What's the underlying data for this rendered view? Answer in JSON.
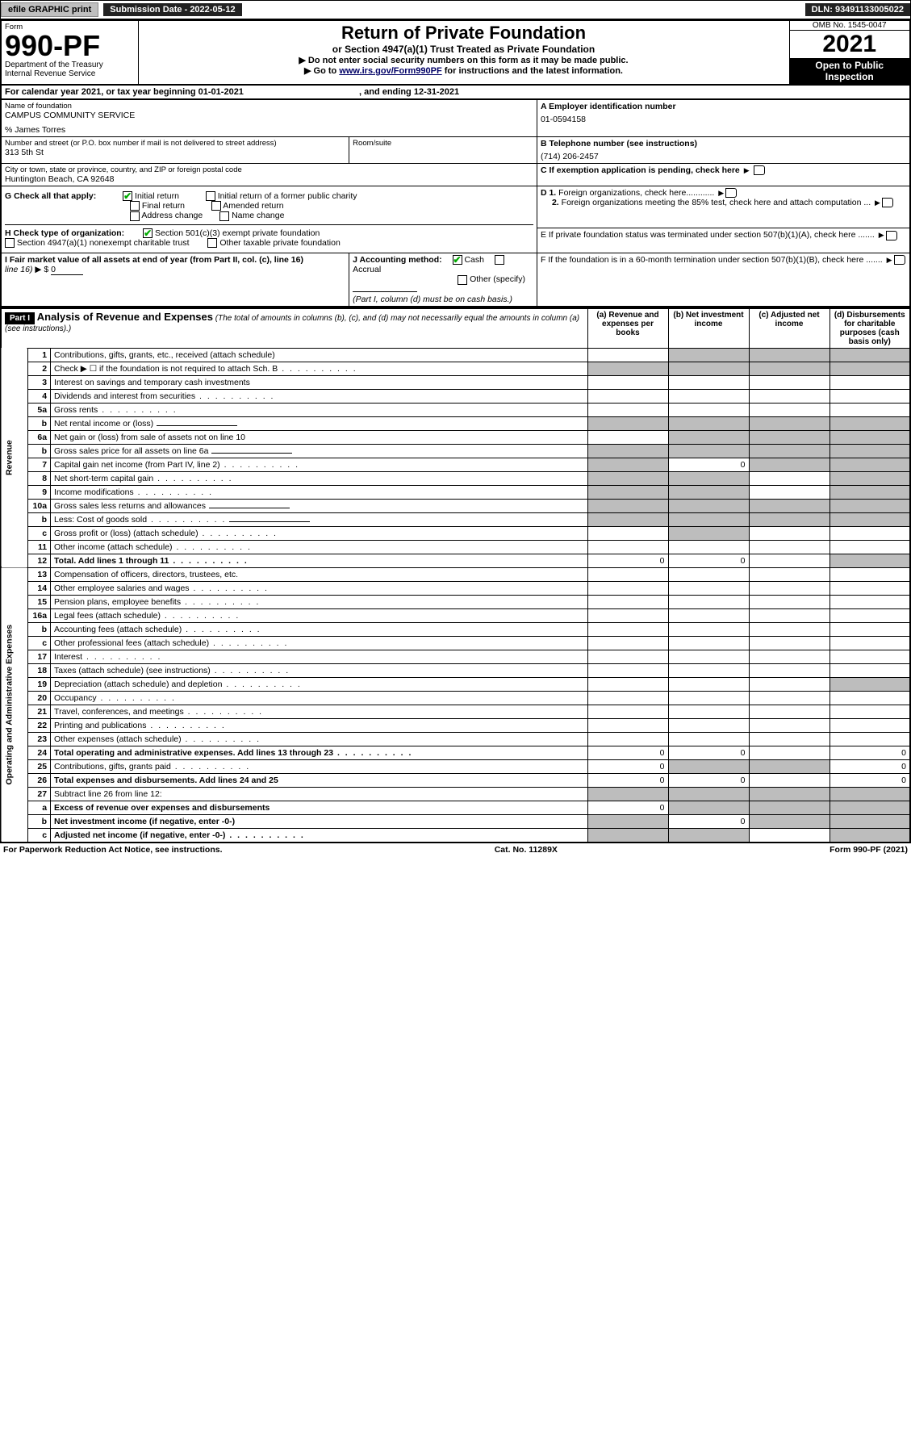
{
  "colors": {
    "black": "#000000",
    "white": "#ffffff",
    "grey_btn": "#bfbfbf",
    "grey_shade": "#bdbdbd",
    "dark": "#222222",
    "link": "#000066",
    "check_green": "#00aa00"
  },
  "topbar": {
    "efile": "efile GRAPHIC print",
    "submission": "Submission Date - 2022-05-12",
    "dln": "DLN: 93491133005022"
  },
  "head": {
    "form_word": "Form",
    "form_num": "990-PF",
    "dept": "Department of the Treasury\nInternal Revenue Service",
    "title": "Return of Private Foundation",
    "subtitle": "or Section 4947(a)(1) Trust Treated as Private Foundation",
    "note1": "▶ Do not enter social security numbers on this form as it may be made public.",
    "note2_pre": "▶ Go to ",
    "note2_link": "www.irs.gov/Form990PF",
    "note2_post": " for instructions and the latest information.",
    "omb": "OMB No. 1545-0047",
    "year": "2021",
    "inspect": "Open to Public Inspection"
  },
  "calendar": {
    "text_pre": "For calendar year 2021, or tax year beginning ",
    "begin": "01-01-2021",
    "mid": " , and ending ",
    "end": "12-31-2021"
  },
  "ident": {
    "name_lbl": "Name of foundation",
    "name": "CAMPUS COMMUNITY SERVICE",
    "care_of": "% James Torres",
    "street_lbl": "Number and street (or P.O. box number if mail is not delivered to street address)",
    "street": "313 5th St",
    "room_lbl": "Room/suite",
    "city_lbl": "City or town, state or province, country, and ZIP or foreign postal code",
    "city": "Huntington Beach, CA  92648",
    "a_lbl": "A Employer identification number",
    "a_val": "01-0594158",
    "b_lbl": "B Telephone number (see instructions)",
    "b_val": "(714) 206-2457",
    "c_lbl": "C If exemption application is pending, check here"
  },
  "boxG": {
    "lbl": "G Check all that apply:",
    "opts": [
      "Initial return",
      "Initial return of a former public charity",
      "Final return",
      "Amended return",
      "Address change",
      "Name change"
    ],
    "checked": [
      true,
      false,
      false,
      false,
      false,
      false
    ]
  },
  "boxH": {
    "lbl": "H Check type of organization:",
    "opts": [
      "Section 501(c)(3) exempt private foundation",
      "Section 4947(a)(1) nonexempt charitable trust",
      "Other taxable private foundation"
    ],
    "checked": [
      true,
      false,
      false
    ]
  },
  "boxI": {
    "lbl": "I Fair market value of all assets at end of year (from Part II, col. (c), line 16)",
    "arrow": "▶ $",
    "val": "0"
  },
  "boxJ": {
    "lbl": "J Accounting method:",
    "opts": [
      "Cash",
      "Accrual",
      "Other (specify)"
    ],
    "checked": [
      true,
      false,
      false
    ],
    "note": "(Part I, column (d) must be on cash basis.)"
  },
  "boxD": {
    "d1": "D 1. Foreign organizations, check here............",
    "d2": "2. Foreign organizations meeting the 85% test, check here and attach computation ..."
  },
  "boxE": "E  If private foundation status was terminated under section 507(b)(1)(A), check here .......",
  "boxF": "F  If the foundation is in a 60-month termination under section 507(b)(1)(B), check here .......",
  "part1": {
    "hdr": "Part I",
    "title": "Analysis of Revenue and Expenses",
    "title_note": "(The total of amounts in columns (b), (c), and (d) may not necessarily equal the amounts in column (a) (see instructions).)",
    "cols": {
      "a": "(a)  Revenue and expenses per books",
      "b": "(b)  Net investment income",
      "c": "(c)  Adjusted net income",
      "d": "(d)  Disbursements for charitable purposes (cash basis only)"
    },
    "side1": "Revenue",
    "side2": "Operating and Administrative Expenses",
    "rows": [
      {
        "n": "1",
        "t": "Contributions, gifts, grants, etc., received (attach schedule)",
        "shade_bcd": true
      },
      {
        "n": "2",
        "t": "Check ▶ ☐ if the foundation is not required to attach Sch. B",
        "dots": true,
        "shade_all": true
      },
      {
        "n": "3",
        "t": "Interest on savings and temporary cash investments"
      },
      {
        "n": "4",
        "t": "Dividends and interest from securities",
        "dots": true
      },
      {
        "n": "5a",
        "t": "Gross rents",
        "dots": true
      },
      {
        "n": "b",
        "t": "Net rental income or (loss)",
        "blank_after": true,
        "shade_all": true
      },
      {
        "n": "6a",
        "t": "Net gain or (loss) from sale of assets not on line 10",
        "shade_bcd": true
      },
      {
        "n": "b",
        "t": "Gross sales price for all assets on line 6a",
        "blank_after": true,
        "shade_all": true
      },
      {
        "n": "7",
        "t": "Capital gain net income (from Part IV, line 2)",
        "dots": true,
        "b": "0",
        "shade_a": true,
        "shade_cd": true
      },
      {
        "n": "8",
        "t": "Net short-term capital gain",
        "dots": true,
        "shade_ab": true,
        "shade_d": true
      },
      {
        "n": "9",
        "t": "Income modifications",
        "dots": true,
        "shade_ab": true,
        "shade_d": true
      },
      {
        "n": "10a",
        "t": "Gross sales less returns and allowances",
        "blank_after": true,
        "shade_all": true
      },
      {
        "n": "b",
        "t": "Less: Cost of goods sold",
        "dots": true,
        "blank_after": true,
        "shade_all": true
      },
      {
        "n": "c",
        "t": "Gross profit or (loss) (attach schedule)",
        "dots": true,
        "shade_b": true
      },
      {
        "n": "11",
        "t": "Other income (attach schedule)",
        "dots": true
      },
      {
        "n": "12",
        "t": "Total. Add lines 1 through 11",
        "dots": true,
        "bold": true,
        "a": "0",
        "b": "0",
        "shade_d": true
      },
      {
        "n": "13",
        "t": "Compensation of officers, directors, trustees, etc."
      },
      {
        "n": "14",
        "t": "Other employee salaries and wages",
        "dots": true
      },
      {
        "n": "15",
        "t": "Pension plans, employee benefits",
        "dots": true
      },
      {
        "n": "16a",
        "t": "Legal fees (attach schedule)",
        "dots": true
      },
      {
        "n": "b",
        "t": "Accounting fees (attach schedule)",
        "dots": true
      },
      {
        "n": "c",
        "t": "Other professional fees (attach schedule)",
        "dots": true
      },
      {
        "n": "17",
        "t": "Interest",
        "dots": true
      },
      {
        "n": "18",
        "t": "Taxes (attach schedule) (see instructions)",
        "dots": true
      },
      {
        "n": "19",
        "t": "Depreciation (attach schedule) and depletion",
        "dots": true,
        "shade_d": true
      },
      {
        "n": "20",
        "t": "Occupancy",
        "dots": true
      },
      {
        "n": "21",
        "t": "Travel, conferences, and meetings",
        "dots": true
      },
      {
        "n": "22",
        "t": "Printing and publications",
        "dots": true
      },
      {
        "n": "23",
        "t": "Other expenses (attach schedule)",
        "dots": true
      },
      {
        "n": "24",
        "t": "Total operating and administrative expenses. Add lines 13 through 23",
        "dots": true,
        "bold": true,
        "a": "0",
        "b": "0",
        "d": "0"
      },
      {
        "n": "25",
        "t": "Contributions, gifts, grants paid",
        "dots": true,
        "a": "0",
        "d": "0",
        "shade_bc": true
      },
      {
        "n": "26",
        "t": "Total expenses and disbursements. Add lines 24 and 25",
        "bold": true,
        "a": "0",
        "b": "0",
        "d": "0"
      },
      {
        "n": "27",
        "t": "Subtract line 26 from line 12:",
        "shade_all": true
      },
      {
        "n": "a",
        "t": "Excess of revenue over expenses and disbursements",
        "bold": true,
        "a": "0",
        "shade_bcd": true
      },
      {
        "n": "b",
        "t": "Net investment income (if negative, enter -0-)",
        "bold": true,
        "b": "0",
        "shade_a": true,
        "shade_cd": true
      },
      {
        "n": "c",
        "t": "Adjusted net income (if negative, enter -0-)",
        "dots": true,
        "bold": true,
        "shade_ab": true,
        "shade_d": true
      }
    ]
  },
  "footer": {
    "left": "For Paperwork Reduction Act Notice, see instructions.",
    "mid": "Cat. No. 11289X",
    "right": "Form 990-PF (2021)"
  }
}
